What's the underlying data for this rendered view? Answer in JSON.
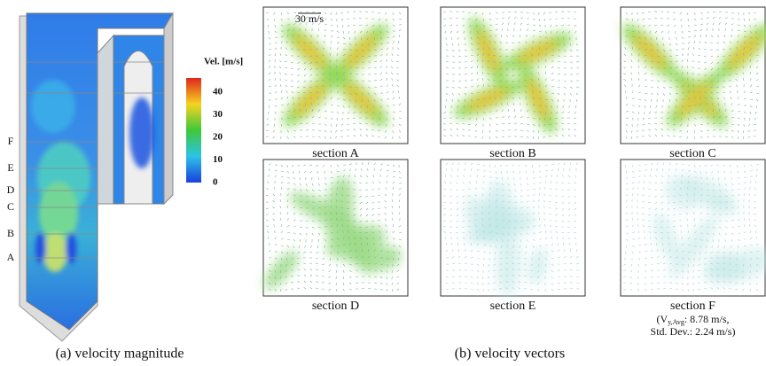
{
  "left": {
    "caption": "(a) velocity magnitude",
    "colorbar": {
      "title": "Vel. [m/s]",
      "ticks": [
        40,
        30,
        20,
        10,
        0
      ]
    },
    "levels": [
      "F",
      "E",
      "D",
      "C",
      "B",
      "A"
    ]
  },
  "right": {
    "caption": "(b) velocity vectors",
    "scale_label": "30 m/s",
    "sections": [
      {
        "label": "section A"
      },
      {
        "label": "section B"
      },
      {
        "label": "section C"
      },
      {
        "label": "section D"
      },
      {
        "label": "section E"
      },
      {
        "label": "section F",
        "note": [
          "(V",
          "y,Avg",
          ": 8.78 m/s,",
          "Std. Dev.: 2.24 m/s)"
        ]
      }
    ]
  }
}
